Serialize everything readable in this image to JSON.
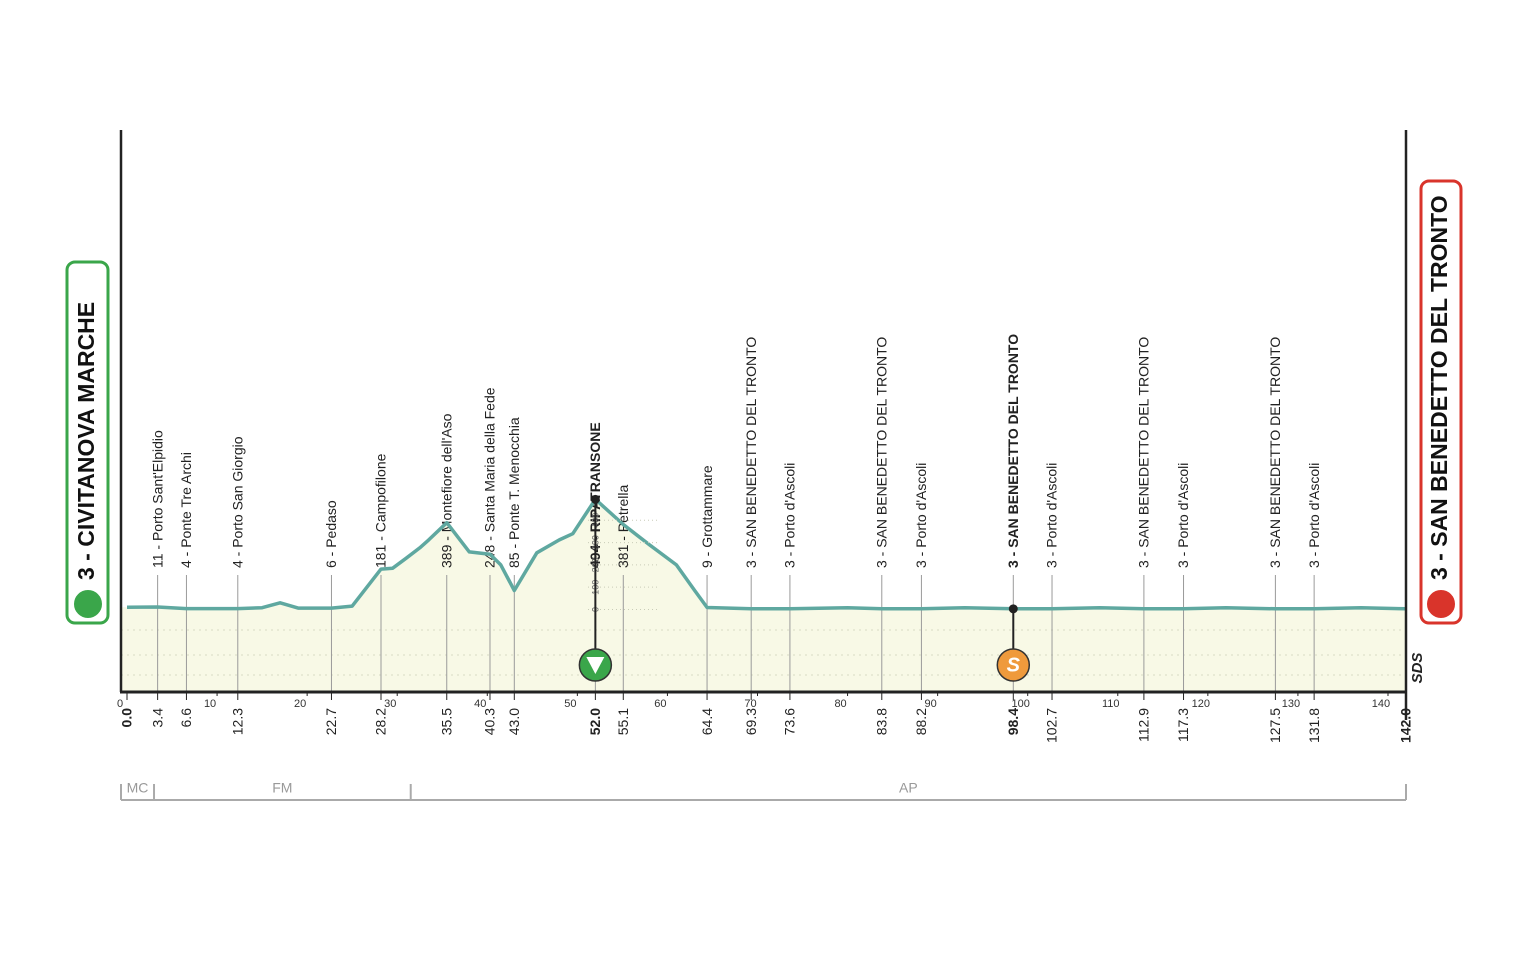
{
  "chart_data": {
    "type": "profile",
    "start": {
      "label": "3 - CIVITANOVA MARCHE",
      "color": "#3aa64a"
    },
    "finish": {
      "label": "3 - SAN BENEDETTO DEL TRONTO",
      "color": "#d9342b"
    },
    "waypoints": [
      {
        "km": {
          "value": 0,
          "label": "0.0"
        },
        "bold": true
      },
      {
        "km": 3.4,
        "label": "11 - Porto Sant'Elpidio"
      },
      {
        "km": 6.6,
        "label": "4 - Ponte Tre Archi"
      },
      {
        "km": 12.3,
        "label": "4 - Porto San Giorgio"
      },
      {
        "km": 22.7,
        "label": "6 - Pedaso"
      },
      {
        "km": 28.2,
        "label": "181 - Campofilone"
      },
      {
        "km": 35.5,
        "label": "389 - Montefiore dell'Aso"
      },
      {
        "km": 40.3,
        "label": "248 - Santa Maria della Fede"
      },
      {
        "km": {
          "value": 43,
          "label": "43.0"
        },
        "label": "85 - Ponte T. Menocchia"
      },
      {
        "km": {
          "value": 52,
          "label": "52.0"
        },
        "label": "494 - RIPATRANSONE",
        "bold": true
      },
      {
        "km": 55.1,
        "label": "381 - Petrella"
      },
      {
        "km": 64.4,
        "label": "9 - Grottammare"
      },
      {
        "km": 69.3,
        "label": "3 - SAN BENEDETTO DEL TRONTO"
      },
      {
        "km": 73.6,
        "label": "3 - Porto d'Ascoli"
      },
      {
        "km": 83.8,
        "label": "3 - SAN BENEDETTO DEL TRONTO"
      },
      {
        "km": 88.2,
        "label": "3 - Porto d'Ascoli"
      },
      {
        "km": 98.4,
        "label": "3 - SAN BENEDETTO DEL TRONTO",
        "bold": true
      },
      {
        "km": 102.7,
        "label": "3 - Porto d'Ascoli"
      },
      {
        "km": 112.9,
        "label": "3 - SAN BENEDETTO DEL TRONTO"
      },
      {
        "km": 117.3,
        "label": "3 - Porto d'Ascoli"
      },
      {
        "km": 127.5,
        "label": "3 - SAN BENEDETTO DEL TRONTO"
      },
      {
        "km": 131.8,
        "label": "3 - Porto d'Ascoli"
      },
      {
        "km": {
          "value": 142,
          "label": "142.0"
        },
        "bold": true
      }
    ],
    "x": [
      0,
      3.4,
      6.6,
      12.3,
      15,
      17,
      19,
      22.7,
      25,
      28.2,
      29.5,
      31,
      32.5,
      33.5,
      35.5,
      38,
      40.3,
      41.5,
      43,
      45.5,
      48,
      49.5,
      52,
      55.1,
      58,
      61,
      63,
      64.4,
      69.3,
      73.6,
      80,
      83.8,
      88.2,
      93,
      98.4,
      102.7,
      108,
      112.9,
      117.3,
      122,
      127.5,
      131.8,
      137,
      142
    ],
    "values": [
      10,
      11,
      4,
      4,
      8,
      30,
      6,
      6,
      15,
      181,
      185,
      230,
      276,
      312,
      389,
      258,
      248,
      200,
      85,
      254,
      312,
      340,
      494,
      381,
      290,
      200,
      87,
      9,
      3,
      3,
      8,
      3,
      3,
      8,
      3,
      3,
      8,
      3,
      3,
      8,
      3,
      3,
      8,
      3
    ],
    "color": "#5fa8a0",
    "xlim": [
      0,
      142
    ],
    "xticks": [
      0,
      10,
      20,
      30,
      40,
      50,
      60,
      70,
      80,
      90,
      100,
      110,
      120,
      130,
      140
    ],
    "ylim": [
      -370,
      2150
    ],
    "yticks": [
      0,
      100,
      200,
      300,
      400
    ],
    "markers": [
      {
        "km": 52,
        "kind": "kom",
        "color": "#3aa64a"
      },
      {
        "km": 98.4,
        "kind": "sprint",
        "label": "S",
        "color": "#ef9a3c"
      }
    ],
    "regions": [
      {
        "label": "MC",
        "from": 0,
        "to": 3
      },
      {
        "label": "FM",
        "from": 3,
        "to": 31.5
      },
      {
        "label": "AP",
        "from": 31.5,
        "to": 142
      }
    ],
    "logo": "SDS"
  }
}
